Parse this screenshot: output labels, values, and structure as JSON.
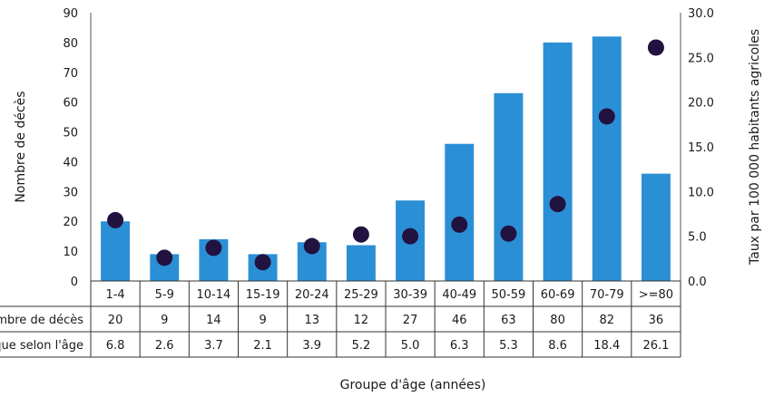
{
  "chart_data": {
    "type": "bar",
    "categories": [
      "1-4",
      "5-9",
      "10-14",
      "15-19",
      "20-24",
      "25-29",
      "30-39",
      "40-49",
      "50-59",
      "60-69",
      "70-79",
      ">=80"
    ],
    "series": [
      {
        "name": "Nombre de décès",
        "type": "bar",
        "axis": "left",
        "values": [
          20,
          9,
          14,
          9,
          13,
          12,
          27,
          46,
          63,
          80,
          82,
          36
        ]
      },
      {
        "name": "Taux spécifique selon l'âge",
        "type": "scatter",
        "axis": "right",
        "values": [
          6.8,
          2.6,
          3.7,
          2.1,
          3.9,
          5.2,
          5.0,
          6.3,
          5.3,
          8.6,
          18.4,
          26.1
        ]
      }
    ],
    "table": {
      "row_labels": [
        "Nombre de décès",
        "Taux spécifique selon l'âge"
      ],
      "rows": [
        [
          "20",
          "9",
          "14",
          "9",
          "13",
          "12",
          "27",
          "46",
          "63",
          "80",
          "82",
          "36"
        ],
        [
          "6.8",
          "2.6",
          "3.7",
          "2.1",
          "3.9",
          "5.2",
          "5.0",
          "6.3",
          "5.3",
          "8.6",
          "18.4",
          "26.1"
        ]
      ]
    },
    "ylabel": "Nombre de décès",
    "y2label": "Taux par 100 000 habitants agricoles",
    "xlabel": "Groupe d'âge (années)",
    "ylim": [
      0,
      90
    ],
    "y2lim": [
      0,
      30
    ],
    "yticks": [
      "0",
      "10",
      "20",
      "30",
      "40",
      "50",
      "60",
      "70",
      "80",
      "90"
    ],
    "y2ticks": [
      "0.0",
      "5.0",
      "10.0",
      "15.0",
      "20.0",
      "25.0",
      "30.0"
    ],
    "grid": false,
    "colors": {
      "bars": "#2b8fd6",
      "dots": "#22123f"
    }
  }
}
